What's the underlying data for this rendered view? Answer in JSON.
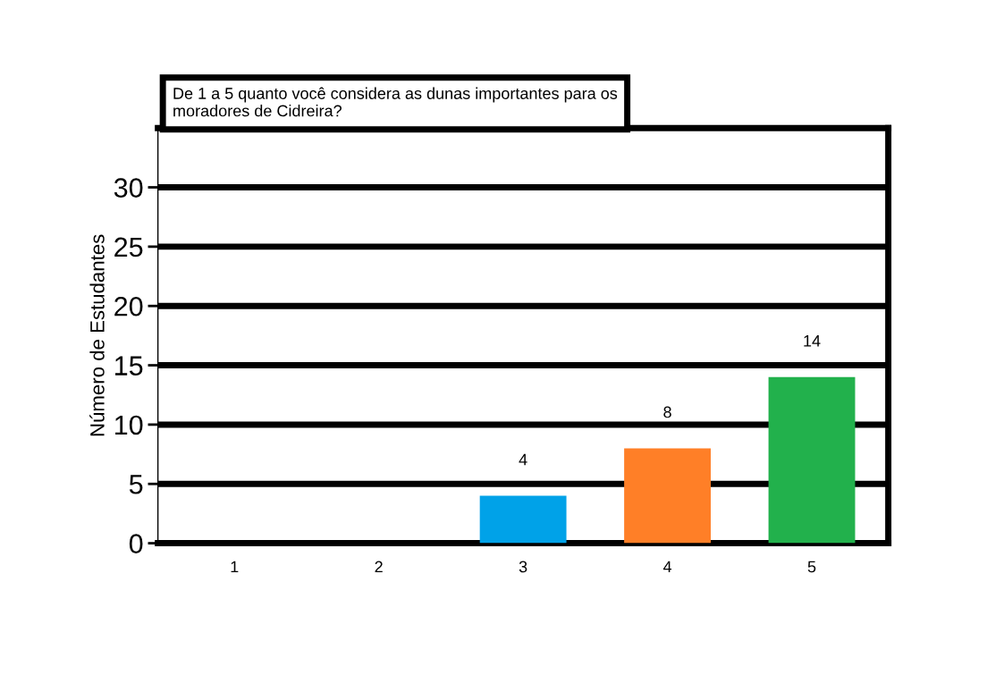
{
  "chart_data": {
    "type": "bar",
    "title": "De 1 a 5 quanto você considera as dunas importantes para os\nmoradores de Cidreira?",
    "ylabel": "Número de Estudantes",
    "categories": [
      "1",
      "2",
      "3",
      "4",
      "5"
    ],
    "values": [
      0,
      0,
      4,
      8,
      14
    ],
    "colors": [
      "#00a2e8",
      "#00a2e8",
      "#00a2e8",
      "#ff7f27",
      "#22b14c"
    ],
    "value_labels": [
      null,
      null,
      "4",
      "8",
      "14"
    ],
    "ylim": [
      0,
      35
    ],
    "yticks": [
      0,
      5,
      10,
      15,
      20,
      25,
      30
    ],
    "grid": "y"
  }
}
